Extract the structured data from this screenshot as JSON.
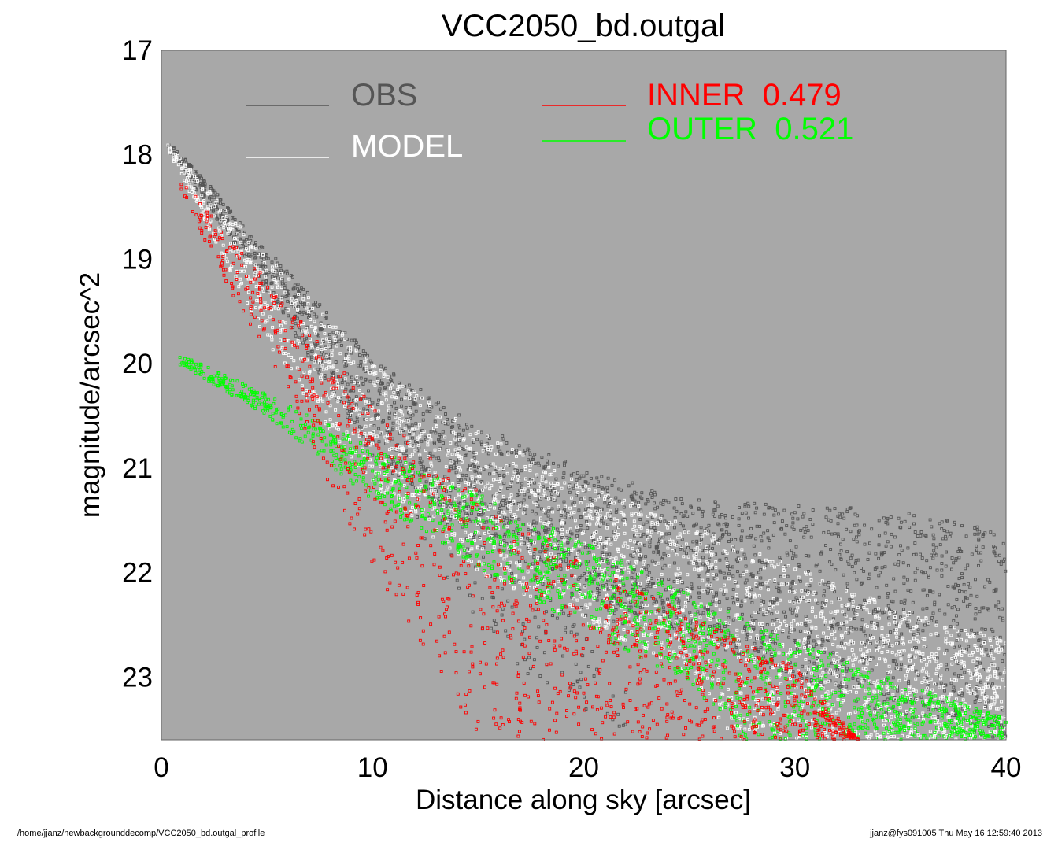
{
  "chart_data": {
    "type": "scatter",
    "title": "VCC2050_bd.outgal",
    "xlabel": "Distance along sky [arcsec]",
    "ylabel": "magnitude/arcsec^2",
    "xlim": [
      0,
      40
    ],
    "ylim": [
      23.6,
      17
    ],
    "y_inverted": true,
    "xticks": [
      "0",
      "10",
      "20",
      "30",
      "40"
    ],
    "yticks": [
      "17",
      "18",
      "19",
      "20",
      "21",
      "22",
      "23"
    ],
    "background_color": "#a8a8a8",
    "grid": false,
    "legend": [
      {
        "label": "OBS",
        "color": "#555555"
      },
      {
        "label": "MODEL",
        "color": "#ffffff"
      },
      {
        "label": "INNER  0.479",
        "color": "#ff0000"
      },
      {
        "label": "OUTER  0.521",
        "color": "#00ff00"
      }
    ],
    "series": [
      {
        "name": "OBS",
        "color": "#555555",
        "band_upper": [
          [
            0.3,
            17.85
          ],
          [
            5,
            18.9
          ],
          [
            10,
            19.95
          ],
          [
            15,
            20.6
          ],
          [
            20,
            21.0
          ],
          [
            25,
            21.3
          ],
          [
            30,
            21.35
          ],
          [
            35,
            21.4
          ],
          [
            40,
            21.6
          ]
        ],
        "band_lower": [
          [
            0.3,
            17.95
          ],
          [
            5,
            19.3
          ],
          [
            10,
            20.9
          ],
          [
            15,
            21.7
          ],
          [
            20,
            22.2
          ],
          [
            25,
            22.6
          ],
          [
            30,
            23.0
          ],
          [
            35,
            23.4
          ],
          [
            40,
            23.6
          ]
        ],
        "scatter_region": [
          [
            12,
            21.6
          ],
          [
            16,
            22.8
          ],
          [
            22,
            23.6
          ]
        ]
      },
      {
        "name": "MODEL",
        "color": "#ffffff",
        "band_upper": [
          [
            0.3,
            17.9
          ],
          [
            5,
            18.95
          ],
          [
            10,
            20.0
          ],
          [
            15,
            20.65
          ],
          [
            20,
            21.15
          ],
          [
            25,
            21.55
          ],
          [
            30,
            21.95
          ],
          [
            35,
            22.35
          ],
          [
            40,
            22.65
          ]
        ],
        "band_lower": [
          [
            0.3,
            17.95
          ],
          [
            5,
            19.8
          ],
          [
            10,
            21.2
          ],
          [
            15,
            22.0
          ],
          [
            20,
            22.5
          ],
          [
            25,
            22.95
          ],
          [
            27,
            23.6
          ],
          [
            40,
            23.6
          ]
        ]
      },
      {
        "name": "INNER",
        "color": "#ff0000",
        "upper_edge": [
          [
            0.8,
            18.2
          ],
          [
            5,
            19.2
          ],
          [
            10,
            20.4
          ],
          [
            15,
            21.2
          ],
          [
            20,
            21.9
          ],
          [
            25,
            22.4
          ],
          [
            30,
            22.9
          ],
          [
            33,
            23.6
          ]
        ],
        "lower_edge": [
          [
            0.8,
            18.3
          ],
          [
            3,
            19.2
          ],
          [
            6,
            20.3
          ],
          [
            9,
            21.6
          ],
          [
            12,
            22.6
          ],
          [
            15,
            23.6
          ]
        ]
      },
      {
        "name": "OUTER",
        "color": "#00ff00",
        "upper_edge": [
          [
            0.8,
            19.9
          ],
          [
            5,
            20.3
          ],
          [
            10,
            20.8
          ],
          [
            15,
            21.25
          ],
          [
            20,
            21.7
          ],
          [
            25,
            22.2
          ],
          [
            30,
            22.65
          ],
          [
            35,
            23.05
          ],
          [
            40,
            23.4
          ]
        ],
        "lower_edge": [
          [
            0.8,
            20.0
          ],
          [
            5,
            20.5
          ],
          [
            10,
            21.3
          ],
          [
            15,
            21.95
          ],
          [
            20,
            22.55
          ],
          [
            25,
            23.05
          ],
          [
            27.5,
            23.6
          ],
          [
            40,
            23.6
          ]
        ]
      }
    ]
  },
  "footer": {
    "left": "/home/jjanz/newbackgrounddecomp/VCC2050_bd.outgal_profile",
    "right": "jjanz@fys091005  Thu May 16 12:59:40 2013"
  }
}
